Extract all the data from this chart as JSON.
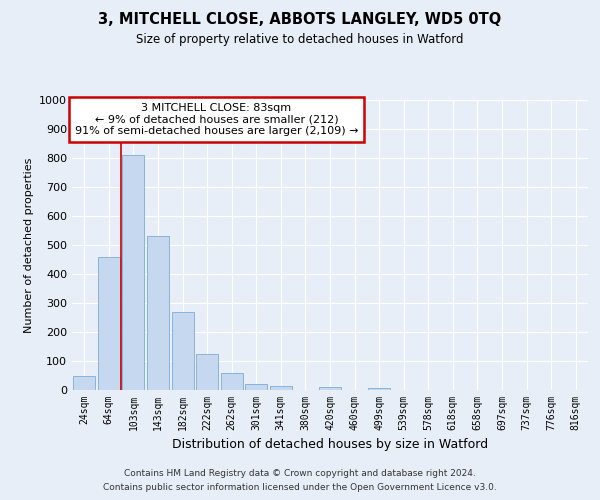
{
  "title": "3, MITCHELL CLOSE, ABBOTS LANGLEY, WD5 0TQ",
  "subtitle": "Size of property relative to detached houses in Watford",
  "xlabel": "Distribution of detached houses by size in Watford",
  "ylabel": "Number of detached properties",
  "bin_labels": [
    "24sqm",
    "64sqm",
    "103sqm",
    "143sqm",
    "182sqm",
    "222sqm",
    "262sqm",
    "301sqm",
    "341sqm",
    "380sqm",
    "420sqm",
    "460sqm",
    "499sqm",
    "539sqm",
    "578sqm",
    "618sqm",
    "658sqm",
    "697sqm",
    "737sqm",
    "776sqm",
    "816sqm"
  ],
  "bar_values": [
    47,
    460,
    810,
    530,
    270,
    125,
    57,
    22,
    15,
    0,
    10,
    0,
    8,
    0,
    0,
    0,
    0,
    0,
    0,
    0,
    0
  ],
  "bar_color": "#c5d8f0",
  "bar_edge_color": "#7aadd4",
  "marker_line_color": "#cc0000",
  "annotation_title": "3 MITCHELL CLOSE: 83sqm",
  "annotation_line1": "← 9% of detached houses are smaller (212)",
  "annotation_line2": "91% of semi-detached houses are larger (2,109) →",
  "annotation_box_color": "#cc0000",
  "ylim": [
    0,
    1000
  ],
  "yticks": [
    0,
    100,
    200,
    300,
    400,
    500,
    600,
    700,
    800,
    900,
    1000
  ],
  "footnote1": "Contains HM Land Registry data © Crown copyright and database right 2024.",
  "footnote2": "Contains public sector information licensed under the Open Government Licence v3.0.",
  "bg_color": "#e8eef8",
  "plot_bg_color": "#e8eef8"
}
